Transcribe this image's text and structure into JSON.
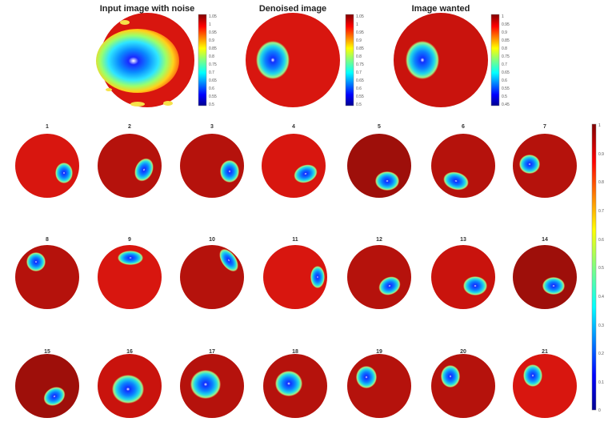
{
  "top_panels": [
    {
      "title": "Input image with noise",
      "colorbar_ticks": [
        "1.05",
        "1",
        "0.95",
        "0.9",
        "0.85",
        "0.8",
        "0.75",
        "0.7",
        "0.65",
        "0.6",
        "0.55",
        "0.5"
      ]
    },
    {
      "title": "Denoised image",
      "colorbar_ticks": [
        "1.05",
        "1",
        "0.95",
        "0.9",
        "0.85",
        "0.8",
        "0.75",
        "0.7",
        "0.65",
        "0.6",
        "0.55",
        "0.5"
      ]
    },
    {
      "title": "Image wanted",
      "colorbar_ticks": [
        "1",
        "0.95",
        "0.9",
        "0.85",
        "0.8",
        "0.75",
        "0.7",
        "0.65",
        "0.6",
        "0.55",
        "0.5",
        "0.45"
      ]
    }
  ],
  "small_panels": [
    {
      "label": "1"
    },
    {
      "label": "2"
    },
    {
      "label": "3"
    },
    {
      "label": "4"
    },
    {
      "label": "5"
    },
    {
      "label": "6"
    },
    {
      "label": "7"
    },
    {
      "label": "8"
    },
    {
      "label": "9"
    },
    {
      "label": "10"
    },
    {
      "label": "11"
    },
    {
      "label": "12"
    },
    {
      "label": "13"
    },
    {
      "label": "14"
    },
    {
      "label": "15"
    },
    {
      "label": "16"
    },
    {
      "label": "17"
    },
    {
      "label": "18"
    },
    {
      "label": "19"
    },
    {
      "label": "20"
    },
    {
      "label": "21"
    }
  ],
  "shared_colorbar": {
    "ticks": [
      "1",
      "0.9",
      "0.8",
      "0.7",
      "0.6",
      "0.5",
      "0.4",
      "0.3",
      "0.2",
      "0.1",
      "0"
    ]
  },
  "colors": {
    "field": "#d8160f",
    "field_dark": "#b5120c",
    "colormap": "jet"
  }
}
